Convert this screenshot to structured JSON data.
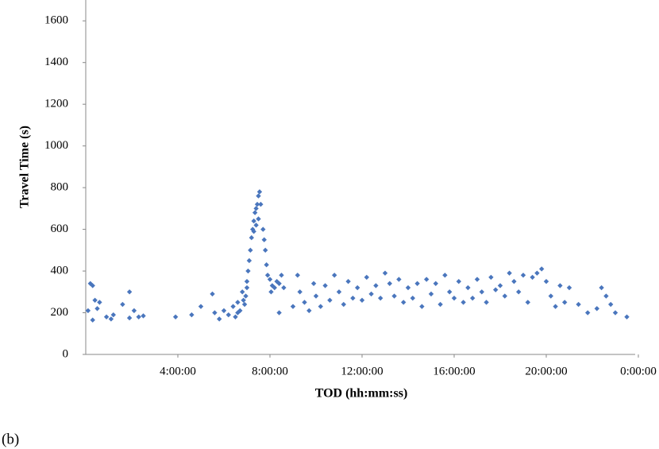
{
  "chart_data": {
    "type": "scatter",
    "x_label": "TOD (hh:mm:ss)",
    "y_label": "Travel Time (s)",
    "annotation": "(b)",
    "color": "#4a76bd",
    "xlim": [
      0,
      24
    ],
    "ylim": [
      0,
      1700
    ],
    "xticks": [
      {
        "value": 4,
        "label": "4:00:00"
      },
      {
        "value": 8,
        "label": "8:00:00"
      },
      {
        "value": 12,
        "label": "12:00:00"
      },
      {
        "value": 16,
        "label": "16:00:00"
      },
      {
        "value": 20,
        "label": "20:00:00"
      },
      {
        "value": 24,
        "label": "0:00:00"
      }
    ],
    "yticks": [
      0,
      200,
      400,
      600,
      800,
      1000,
      1200,
      1400,
      1600
    ],
    "x": [
      0.1,
      0.2,
      0.3,
      0.4,
      0.5,
      0.3,
      0.6,
      0.9,
      1.1,
      1.2,
      1.6,
      1.9,
      1.9,
      2.1,
      2.3,
      2.5,
      3.9,
      4.6,
      5.0,
      5.5,
      5.6,
      5.8,
      6.0,
      6.2,
      6.4,
      6.5,
      6.6,
      6.7,
      6.8,
      6.9,
      7.0,
      7.05,
      7.1,
      7.15,
      7.2,
      7.25,
      7.3,
      7.35,
      7.4,
      7.45,
      7.5,
      7.55,
      7.6,
      7.5,
      7.4,
      7.3,
      6.95,
      7.0,
      6.6,
      6.85,
      7.7,
      7.75,
      7.8,
      7.85,
      7.9,
      8.0,
      8.1,
      8.2,
      8.3,
      8.4,
      8.5,
      8.05,
      8.4,
      8.6,
      9.0,
      9.2,
      9.3,
      9.5,
      9.7,
      9.9,
      10.0,
      10.2,
      10.4,
      10.6,
      10.8,
      11.0,
      11.2,
      11.4,
      11.6,
      11.8,
      12.0,
      12.2,
      12.4,
      12.6,
      12.8,
      13.0,
      13.2,
      13.4,
      13.6,
      13.8,
      14.0,
      14.2,
      14.4,
      14.6,
      14.8,
      15.0,
      15.2,
      15.4,
      15.6,
      15.8,
      16.0,
      16.2,
      16.4,
      16.6,
      16.8,
      17.0,
      17.2,
      17.4,
      17.6,
      17.8,
      18.0,
      18.2,
      18.4,
      18.6,
      18.8,
      19.0,
      19.2,
      19.4,
      19.6,
      19.8,
      20.0,
      20.2,
      20.4,
      20.6,
      20.8,
      21.0,
      21.4,
      21.8,
      22.2,
      22.4,
      22.6,
      22.8,
      23.0,
      23.5
    ],
    "values": [
      210,
      340,
      330,
      260,
      220,
      165,
      250,
      180,
      170,
      190,
      240,
      300,
      175,
      210,
      180,
      185,
      180,
      190,
      230,
      290,
      200,
      170,
      210,
      190,
      230,
      180,
      250,
      210,
      300,
      240,
      350,
      400,
      450,
      500,
      560,
      600,
      640,
      680,
      700,
      720,
      760,
      780,
      720,
      650,
      620,
      590,
      280,
      320,
      200,
      260,
      600,
      550,
      500,
      430,
      380,
      360,
      330,
      320,
      350,
      340,
      380,
      300,
      200,
      320,
      230,
      380,
      300,
      250,
      210,
      340,
      280,
      230,
      330,
      260,
      380,
      300,
      240,
      350,
      270,
      320,
      260,
      370,
      290,
      330,
      270,
      390,
      340,
      280,
      360,
      250,
      320,
      270,
      340,
      230,
      360,
      290,
      340,
      240,
      380,
      300,
      270,
      350,
      250,
      320,
      270,
      360,
      300,
      250,
      370,
      310,
      330,
      280,
      390,
      350,
      300,
      380,
      250,
      370,
      390,
      410,
      350,
      280,
      230,
      330,
      250,
      320,
      240,
      200,
      220,
      320,
      280,
      240,
      200,
      180
    ]
  }
}
